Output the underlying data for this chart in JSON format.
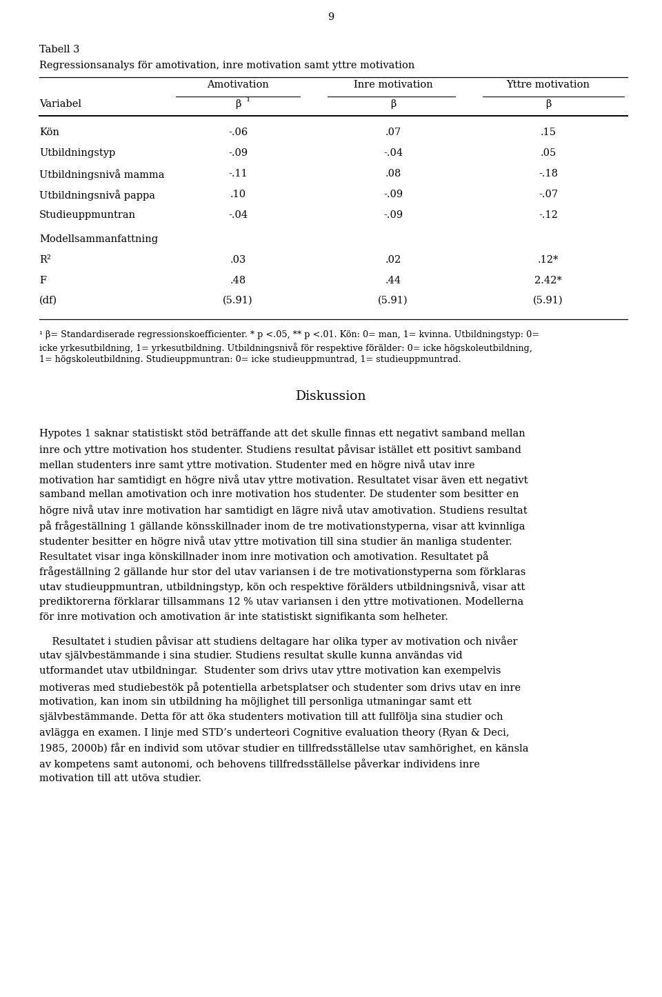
{
  "page_number": "9",
  "table_title": "Tabell 3",
  "table_subtitle": "Regressionsanalys för amotivation, inre motivation samt yttre motivation",
  "col_headers": [
    "Amotivation",
    "Inre motivation",
    "Yttre motivation"
  ],
  "row_label": "Variabel",
  "rows": [
    {
      "label": "Kön",
      "values": [
        "-.06",
        ".07",
        ".15"
      ]
    },
    {
      "label": "Utbildningstyp",
      "values": [
        "-.09",
        "-.04",
        ".05"
      ]
    },
    {
      "label": "Utbildningsnivå mamma",
      "values": [
        "-.11",
        ".08",
        "-.18"
      ]
    },
    {
      "label": "Utbildningsnivå pappa",
      "values": [
        ".10",
        "-.09",
        "-.07"
      ]
    },
    {
      "label": "Studieuppmuntran",
      "values": [
        "-.04",
        "-.09",
        "-.12"
      ]
    }
  ],
  "section_label": "Modellsammanfattning",
  "summary_rows": [
    {
      "label": "R²",
      "values": [
        ".03",
        ".02",
        ".12*"
      ]
    },
    {
      "label": "F",
      "values": [
        ".48",
        ".44",
        "2.42*"
      ]
    },
    {
      "label": "(df)",
      "values": [
        "(5.91)",
        "(5.91)",
        "(5.91)"
      ]
    }
  ],
  "footnote_line1": "¹ β= Standardiserade regressionskoefficienter. * p <.05, ** p <.01. Kön: 0= man, 1= kvinna. Utbildningstyp: 0=",
  "footnote_line2": "icke yrkesutbildning, 1= yrkesutbildning. Utbildningsnivå för respektive förälder: 0= icke högskoleutbildning,",
  "footnote_line3": "1= högskoleutbildning. Studieuppmuntran: 0= icke studieuppmuntrad, 1= studieuppmuntrad.",
  "section_header": "Diskussion",
  "para1_lines": [
    "Hypotes 1 saknar statistiskt stöd beträffande att det skulle finnas ett negativt samband mellan",
    "inre och yttre motivation hos studenter. Studiens resultat påvisar istället ett positivt samband",
    "mellan studenters inre samt yttre motivation. Studenter med en högre nivå utav inre",
    "motivation har samtidigt en högre nivå utav yttre motivation. Resultatet visar även ett negativt",
    "samband mellan amotivation och inre motivation hos studenter. De studenter som besitter en",
    "högre nivå utav inre motivation har samtidigt en lägre nivå utav amotivation. Studiens resultat",
    "på frågeställning 1 gällande könsskillnader inom de tre motivationstyperna, visar att kvinnliga",
    "studenter besitter en högre nivå utav yttre motivation till sina studier än manliga studenter.",
    "Resultatet visar inga könskillnader inom inre motivation och amotivation. Resultatet på",
    "frågeställning 2 gällande hur stor del utav variansen i de tre motivationstyperna som förklaras",
    "utav studieuppmuntran, utbildningstyp, kön och respektive förälders utbildningsnivå, visar att",
    "prediktorerna förklarar tillsammans 12 % utav variansen i den yttre motivationen. Modellerna",
    "för inre motivation och amotivation är inte statistiskt signifikanta som helheter."
  ],
  "para2_lines": [
    "    Resultatet i studien påvisar att studiens deltagare har olika typer av motivation och nivåer",
    "utav självbestämmande i sina studier. Studiens resultat skulle kunna användas vid",
    "utformandet utav utbildningar.  Studenter som drivs utav yttre motivation kan exempelvis",
    "motiveras med studiebestök på potentiella arbetsplatser och studenter som drivs utav en inre",
    "motivation, kan inom sin utbildning ha möjlighet till personliga utmaningar samt ett",
    "självbestämmande. Detta för att öka studenters motivation till att fullfölja sina studier och",
    "avlägga en examen. I linje med STD’s underteori Cognitive evaluation theory (Ryan & Deci,",
    "1985, 2000b) får en individ som utövar studier en tillfredsställelse utav samhörighet, en känsla",
    "av kompetens samt autonomi, och behovens tillfredsställelse påverkar individens inre",
    "motivation till att utöva studier."
  ],
  "bg_color": "#ffffff",
  "text_color": "#000000"
}
